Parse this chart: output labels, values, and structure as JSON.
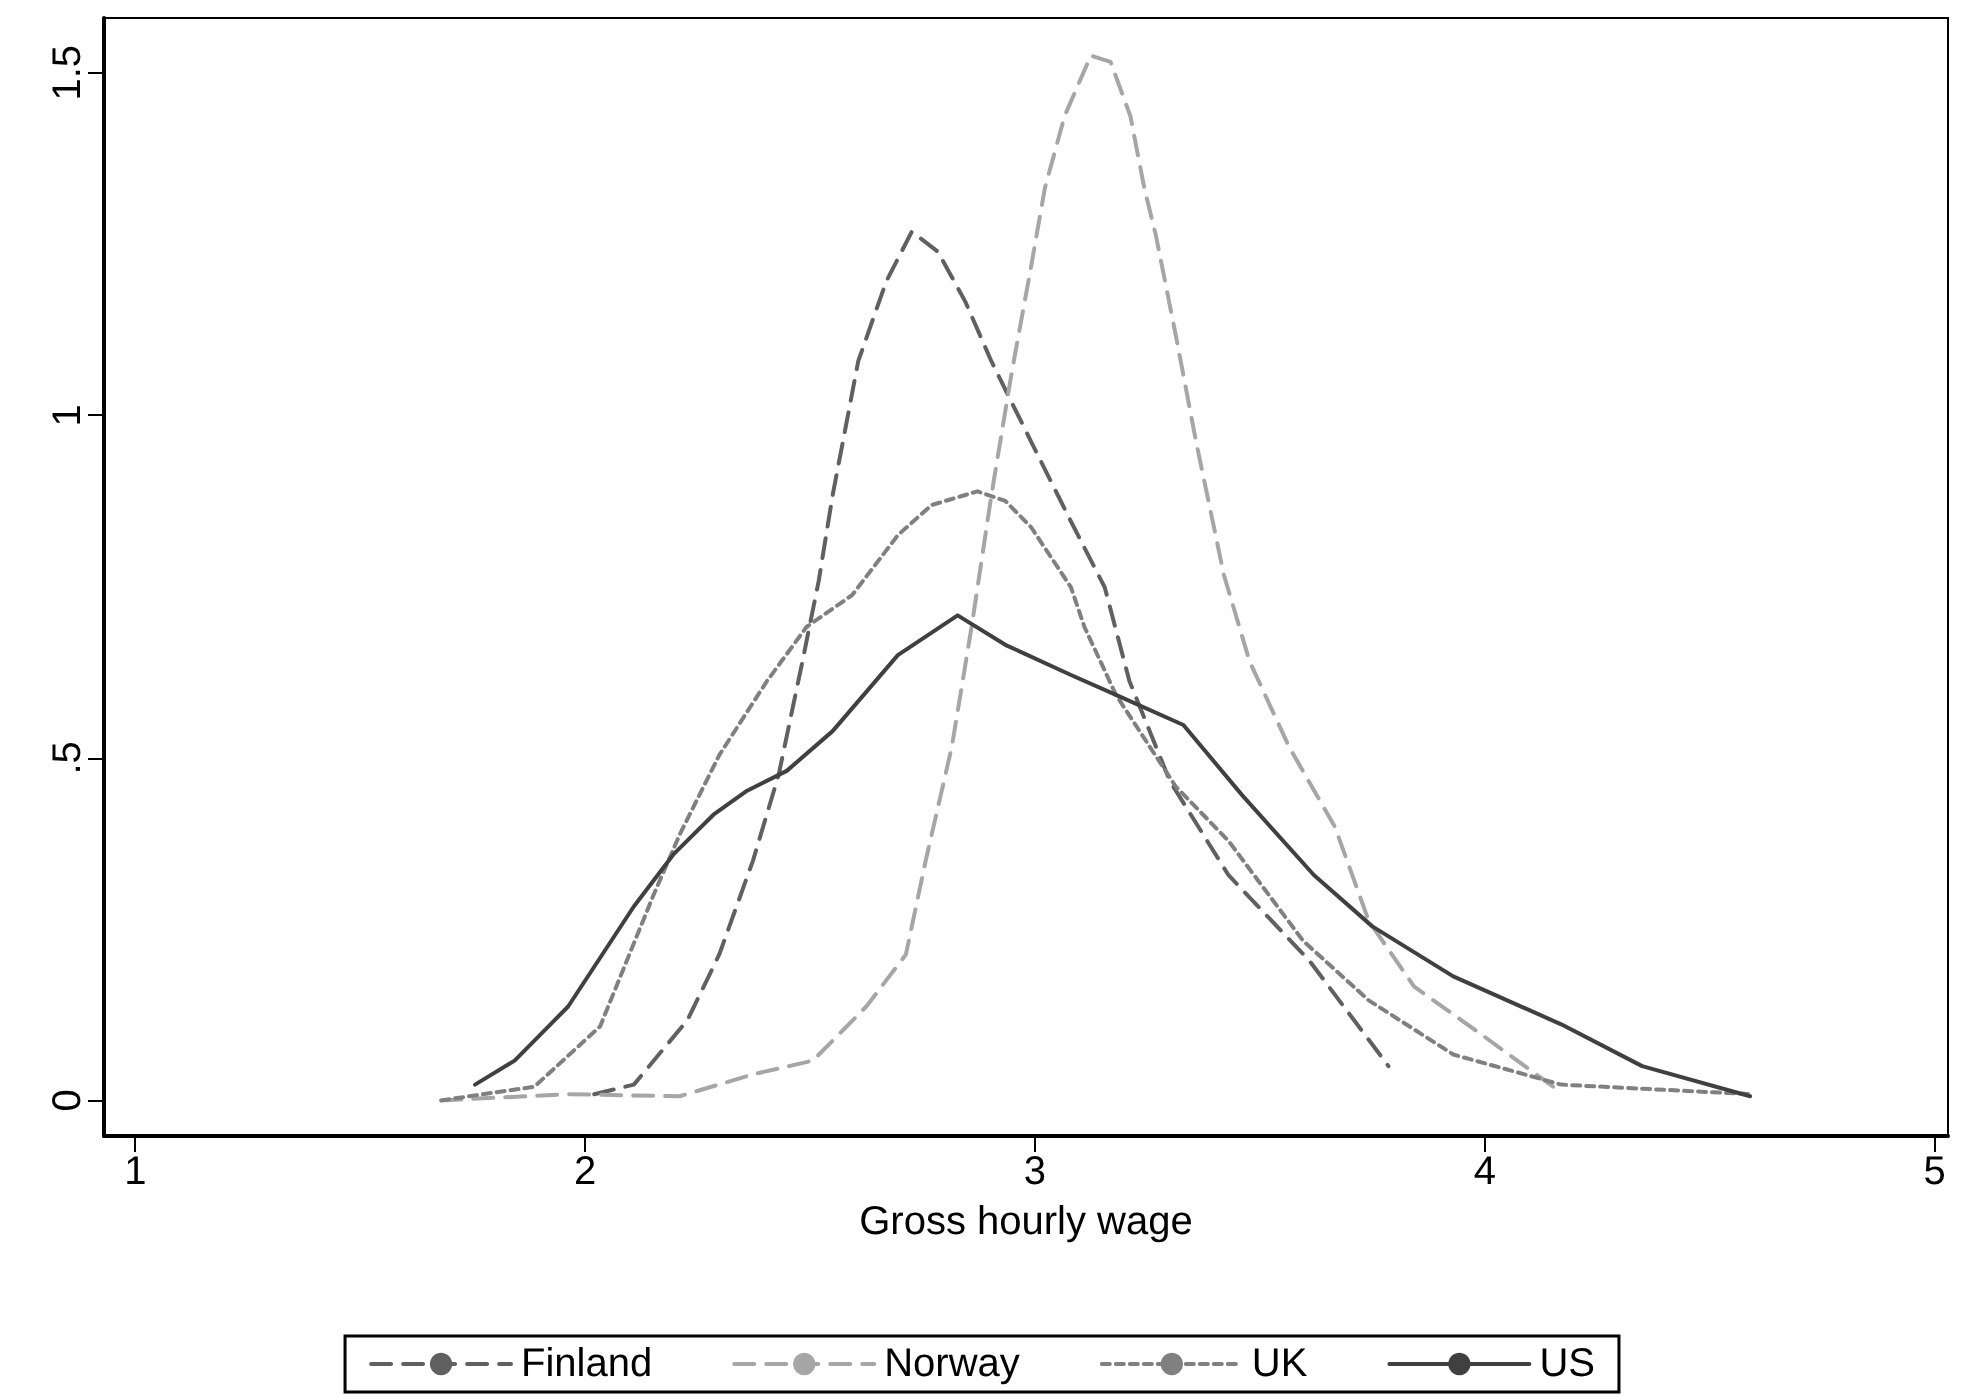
{
  "chart_data": {
    "type": "line",
    "xlabel": "Gross hourly wage",
    "xlim": [
      0.93,
      5.03
    ],
    "xticks": [
      1,
      2,
      3,
      4,
      5
    ],
    "ylim": [
      -0.052,
      1.58
    ],
    "yticks": [
      0,
      {
        "value": 0.5,
        "label": ".5"
      },
      1,
      1.5
    ],
    "grid": false,
    "legend": "bottom",
    "marker": "none",
    "series": [
      {
        "name": "Finland",
        "color": "#606060",
        "line_style": "dashed",
        "x": [
          2.02,
          2.108,
          2.227,
          2.298,
          2.373,
          2.43,
          2.483,
          2.519,
          2.55,
          2.607,
          2.669,
          2.726,
          2.784,
          2.845,
          2.903,
          2.991,
          3.08,
          3.155,
          3.21,
          3.3,
          3.43,
          3.61,
          3.786
        ],
        "values": [
          0.009,
          0.023,
          0.117,
          0.213,
          0.35,
          0.475,
          0.641,
          0.758,
          0.883,
          1.079,
          1.195,
          1.268,
          1.239,
          1.166,
          1.079,
          0.962,
          0.845,
          0.749,
          0.612,
          0.466,
          0.329,
          0.204,
          0.05
        ]
      },
      {
        "name": "Norway",
        "color": "#a6a6a6",
        "line_style": "dashed",
        "x": [
          1.68,
          1.962,
          2.21,
          2.373,
          2.506,
          2.625,
          2.713,
          2.757,
          2.815,
          2.859,
          2.903,
          2.947,
          2.991,
          3.022,
          3.066,
          3.124,
          3.168,
          3.212,
          3.243,
          3.269,
          3.313,
          3.358,
          3.42,
          3.477,
          3.565,
          3.667,
          3.742,
          3.843,
          3.993,
          4.152
        ],
        "values": [
          0,
          0.009,
          0.006,
          0.038,
          0.058,
          0.137,
          0.213,
          0.35,
          0.516,
          0.691,
          0.883,
          1.058,
          1.216,
          1.332,
          1.437,
          1.525,
          1.516,
          1.437,
          1.332,
          1.262,
          1.117,
          0.962,
          0.767,
          0.641,
          0.516,
          0.399,
          0.262,
          0.166,
          0.096,
          0.02
        ]
      },
      {
        "name": "UK",
        "color": "#808080",
        "line_style": "dotted",
        "x": [
          1.68,
          1.887,
          2.033,
          2.152,
          2.21,
          2.298,
          2.404,
          2.492,
          2.594,
          2.695,
          2.77,
          2.872,
          2.934,
          2.991,
          3.08,
          3.11,
          3.18,
          3.313,
          3.43,
          3.596,
          3.742,
          3.93,
          4.17,
          4.594
        ],
        "values": [
          0,
          0.02,
          0.108,
          0.3,
          0.388,
          0.504,
          0.612,
          0.691,
          0.738,
          0.825,
          0.869,
          0.889,
          0.875,
          0.837,
          0.749,
          0.691,
          0.592,
          0.458,
          0.379,
          0.233,
          0.146,
          0.067,
          0.023,
          0.009
        ]
      },
      {
        "name": "US",
        "color": "#404040",
        "line_style": "solid",
        "x": [
          1.755,
          1.843,
          1.962,
          2.108,
          2.196,
          2.285,
          2.36,
          2.448,
          2.55,
          2.695,
          2.828,
          2.934,
          3.08,
          3.18,
          3.33,
          3.46,
          3.62,
          3.75,
          3.93,
          4.17,
          4.35,
          4.59
        ],
        "values": [
          0.023,
          0.058,
          0.137,
          0.283,
          0.359,
          0.417,
          0.452,
          0.481,
          0.539,
          0.65,
          0.708,
          0.665,
          0.621,
          0.592,
          0.548,
          0.446,
          0.329,
          0.254,
          0.181,
          0.111,
          0.05,
          0.006
        ]
      }
    ]
  }
}
